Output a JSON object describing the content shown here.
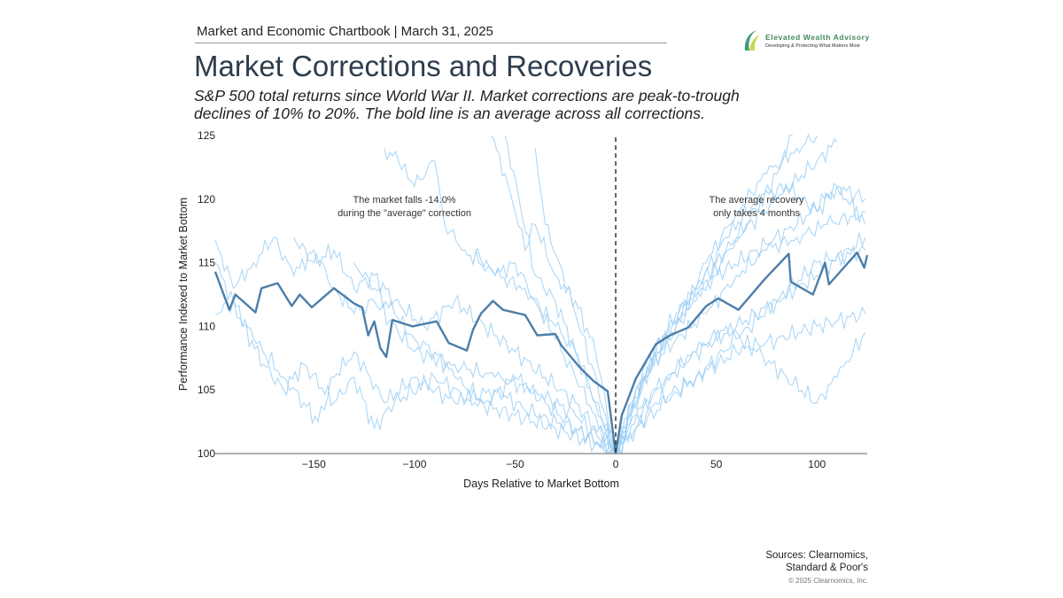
{
  "header": {
    "chartbook": "Market and Economic Chartbook | March 31, 2025",
    "title": "Market Corrections and Recoveries",
    "subtitle_line1": "S&P 500 total returns since World War II. Market corrections are peak-to-trough",
    "subtitle_line2": "declines of 10% to 20%. The bold line is an average across all corrections."
  },
  "logo": {
    "name": "Elevated Wealth Advisory",
    "tagline": "Developing & Protecting What Matters Most",
    "icon": "leaf-swoosh-icon",
    "color": "#3f8a5a"
  },
  "footer": {
    "sources_line1": "Sources: Clearnomics,",
    "sources_line2": "Standard & Poor's",
    "copyright": "© 2025 Clearnomics, Inc."
  },
  "chart_data": {
    "type": "line",
    "xlabel": "Days Relative to Market Bottom",
    "ylabel": "Performance Indexed to Market Bottom",
    "xlim": [
      -199,
      125
    ],
    "ylim": [
      100,
      125
    ],
    "x_ticks": [
      -150,
      -100,
      -50,
      0,
      50,
      100
    ],
    "x_tick_labels": [
      "−150",
      "−100",
      "−50",
      "0",
      "50",
      "100"
    ],
    "y_ticks": [
      100,
      105,
      110,
      115,
      120,
      125
    ],
    "y_tick_labels": [
      "100",
      "105",
      "110",
      "115",
      "120",
      "125"
    ],
    "grid": false,
    "reference_line": {
      "x": 0,
      "style": "dashed"
    },
    "annotations": [
      {
        "line1": "The market falls -14.0%",
        "line2": "during the \"average\" correction",
        "x": -105,
        "y": 120
      },
      {
        "line1": "The average recovery",
        "line2": "only takes 4 months",
        "x": 70,
        "y": 120
      }
    ],
    "colors": {
      "average": "#4d7ea8",
      "corrections": "#9fd0f5",
      "reference": "#333333"
    },
    "average": [
      [
        -199,
        114.3
      ],
      [
        -192,
        111.3
      ],
      [
        -189,
        112.5
      ],
      [
        -179,
        111.1
      ],
      [
        -176,
        113
      ],
      [
        -168,
        113.4
      ],
      [
        -161,
        111.6
      ],
      [
        -157,
        112.5
      ],
      [
        -151,
        111.5
      ],
      [
        -140,
        113
      ],
      [
        -130,
        111.8
      ],
      [
        -126,
        111.5
      ],
      [
        -123,
        109.3
      ],
      [
        -120,
        110.4
      ],
      [
        -117,
        108.3
      ],
      [
        -114,
        107.6
      ],
      [
        -111,
        110.5
      ],
      [
        -101,
        110
      ],
      [
        -89,
        110.4
      ],
      [
        -83,
        108.7
      ],
      [
        -74,
        108.1
      ],
      [
        -71,
        109.7
      ],
      [
        -67,
        111
      ],
      [
        -61,
        112
      ],
      [
        -56,
        111.3
      ],
      [
        -45,
        110.9
      ],
      [
        -39,
        109.3
      ],
      [
        -30,
        109.4
      ],
      [
        -27,
        108.5
      ],
      [
        -18,
        106.8
      ],
      [
        -11,
        105.7
      ],
      [
        -4,
        104.9
      ],
      [
        0,
        100
      ],
      [
        3,
        103
      ],
      [
        10,
        105.9
      ],
      [
        20,
        108.6
      ],
      [
        27,
        109.3
      ],
      [
        36,
        109.9
      ],
      [
        45,
        111.6
      ],
      [
        51,
        112.2
      ],
      [
        61,
        111.3
      ],
      [
        74,
        113.7
      ],
      [
        86,
        115.7
      ],
      [
        87,
        113.5
      ],
      [
        98,
        112.5
      ],
      [
        104,
        115
      ],
      [
        106,
        113.3
      ],
      [
        120,
        115.8
      ],
      [
        123.5,
        114.6
      ],
      [
        125,
        115.6
      ]
    ],
    "corrections": [
      [
        [
          -199,
          116.8
        ],
        [
          -190,
          113
        ],
        [
          -180,
          115
        ],
        [
          -170,
          117
        ],
        [
          -160,
          114
        ],
        [
          -150,
          116
        ],
        [
          -140,
          113
        ],
        [
          -130,
          111
        ],
        [
          -120,
          112
        ],
        [
          -100,
          108
        ],
        [
          -80,
          107
        ],
        [
          -60,
          106
        ],
        [
          -40,
          105
        ],
        [
          -20,
          103
        ],
        [
          0,
          100
        ],
        [
          20,
          108
        ],
        [
          40,
          112
        ],
        [
          60,
          117
        ],
        [
          80,
          120
        ],
        [
          100,
          123
        ],
        [
          110,
          124.5
        ]
      ],
      [
        [
          -199,
          111
        ],
        [
          -190,
          112
        ],
        [
          -180,
          109
        ],
        [
          -165,
          106
        ],
        [
          -155,
          104
        ],
        [
          -148,
          102.5
        ],
        [
          -140,
          106
        ],
        [
          -130,
          108
        ],
        [
          -122,
          106
        ],
        [
          -115,
          104
        ],
        [
          -100,
          106
        ],
        [
          -80,
          104
        ],
        [
          -60,
          105
        ],
        [
          -40,
          103
        ],
        [
          -20,
          102
        ],
        [
          0,
          100
        ],
        [
          20,
          104
        ],
        [
          40,
          106
        ],
        [
          60,
          108
        ],
        [
          80,
          109
        ],
        [
          100,
          110
        ],
        [
          124,
          111
        ]
      ],
      [
        [
          -199,
          115
        ],
        [
          -185,
          110
        ],
        [
          -175,
          107
        ],
        [
          -165,
          105
        ],
        [
          -155,
          107
        ],
        [
          -140,
          104
        ],
        [
          -130,
          106
        ],
        [
          -120,
          102
        ],
        [
          -110,
          104
        ],
        [
          -90,
          106
        ],
        [
          -70,
          104
        ],
        [
          -50,
          103
        ],
        [
          -30,
          102
        ],
        [
          0,
          100
        ],
        [
          20,
          105
        ],
        [
          40,
          108
        ],
        [
          60,
          110
        ],
        [
          80,
          112
        ],
        [
          100,
          114
        ],
        [
          124,
          117
        ]
      ],
      [
        [
          -115,
          124
        ],
        [
          -108,
          123
        ],
        [
          -100,
          121
        ],
        [
          -90,
          123
        ],
        [
          -85,
          118
        ],
        [
          -75,
          116
        ],
        [
          -68,
          115
        ],
        [
          -60,
          114
        ],
        [
          -45,
          113
        ],
        [
          -30,
          110
        ],
        [
          -20,
          108
        ],
        [
          -10,
          104
        ],
        [
          0,
          100
        ],
        [
          15,
          106
        ],
        [
          30,
          110
        ],
        [
          45,
          115
        ],
        [
          60,
          119
        ],
        [
          75,
          122
        ],
        [
          90,
          124
        ],
        [
          100,
          125
        ]
      ],
      [
        [
          -62,
          125
        ],
        [
          -55,
          122
        ],
        [
          -50,
          119
        ],
        [
          -45,
          116
        ],
        [
          -40,
          118
        ],
        [
          -30,
          114
        ],
        [
          -20,
          112
        ],
        [
          -10,
          108
        ],
        [
          0,
          100
        ],
        [
          10,
          105
        ],
        [
          25,
          109
        ],
        [
          40,
          113
        ],
        [
          55,
          117
        ],
        [
          70,
          120
        ],
        [
          85,
          121
        ],
        [
          100,
          119
        ],
        [
          110,
          121
        ],
        [
          124,
          118
        ]
      ],
      [
        [
          -55,
          125
        ],
        [
          -48,
          120
        ],
        [
          -40,
          114
        ],
        [
          -30,
          112
        ],
        [
          -20,
          108
        ],
        [
          -10,
          104
        ],
        [
          0,
          100
        ],
        [
          10,
          104
        ],
        [
          20,
          108
        ],
        [
          35,
          112
        ],
        [
          50,
          115
        ],
        [
          65,
          118
        ],
        [
          80,
          122
        ],
        [
          88,
          125
        ]
      ],
      [
        [
          -70,
          116
        ],
        [
          -60,
          114
        ],
        [
          -50,
          115
        ],
        [
          -40,
          112
        ],
        [
          -30,
          109
        ],
        [
          -20,
          106
        ],
        [
          -10,
          103
        ],
        [
          0,
          100
        ],
        [
          10,
          103
        ],
        [
          25,
          106
        ],
        [
          40,
          108
        ],
        [
          55,
          110
        ],
        [
          70,
          108
        ],
        [
          85,
          106
        ],
        [
          100,
          104
        ],
        [
          110,
          106
        ],
        [
          124,
          109.5
        ]
      ],
      [
        [
          -130,
          115
        ],
        [
          -120,
          113
        ],
        [
          -110,
          111
        ],
        [
          -100,
          109
        ],
        [
          -90,
          108
        ],
        [
          -80,
          106
        ],
        [
          -65,
          104
        ],
        [
          -50,
          106
        ],
        [
          -35,
          104
        ],
        [
          -20,
          102
        ],
        [
          0,
          100
        ],
        [
          10,
          102
        ],
        [
          25,
          104
        ],
        [
          40,
          106
        ],
        [
          60,
          109
        ],
        [
          80,
          112
        ],
        [
          100,
          115
        ],
        [
          124,
          116
        ]
      ],
      [
        [
          -160,
          117
        ],
        [
          -150,
          115
        ],
        [
          -140,
          116
        ],
        [
          -130,
          113
        ],
        [
          -120,
          114
        ],
        [
          -110,
          112
        ],
        [
          -95,
          110
        ],
        [
          -80,
          112
        ],
        [
          -65,
          110
        ],
        [
          -50,
          108
        ],
        [
          -35,
          106
        ],
        [
          -20,
          104
        ],
        [
          0,
          100
        ],
        [
          15,
          107
        ],
        [
          30,
          111
        ],
        [
          50,
          114
        ],
        [
          70,
          116
        ],
        [
          90,
          118
        ],
        [
          110,
          121
        ],
        [
          124,
          120
        ]
      ],
      [
        [
          -40,
          124
        ],
        [
          -35,
          118
        ],
        [
          -28,
          115
        ],
        [
          -20,
          111
        ],
        [
          -12,
          107
        ],
        [
          -5,
          103
        ],
        [
          0,
          100
        ],
        [
          8,
          104
        ],
        [
          18,
          107
        ],
        [
          30,
          109
        ],
        [
          45,
          111
        ],
        [
          60,
          114
        ],
        [
          75,
          116
        ],
        [
          90,
          117
        ],
        [
          105,
          118
        ],
        [
          124,
          119
        ]
      ]
    ]
  }
}
